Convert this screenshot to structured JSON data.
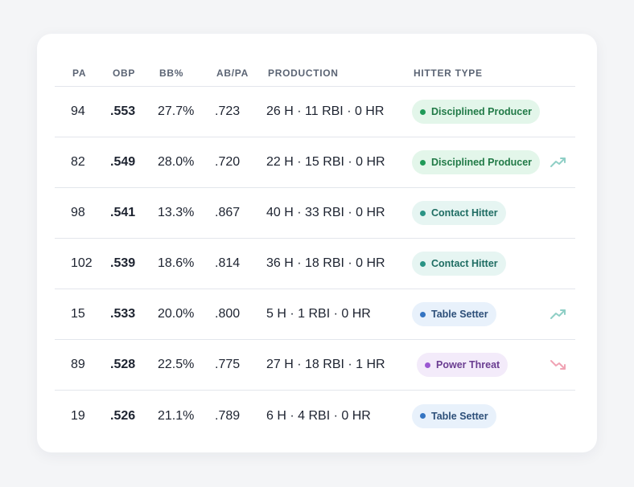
{
  "table": {
    "columns": {
      "pa": "PA",
      "obp": "OBP",
      "bb": "BB%",
      "abpa": "AB/PA",
      "production": "PRODUCTION",
      "hitter_type": "HITTER TYPE"
    },
    "rows": [
      {
        "pa": "94",
        "obp": ".553",
        "bb": "27.7%",
        "abpa": ".723",
        "production": "26 H · 11 RBI · 0 HR",
        "type": "Disciplined Producer",
        "type_color": "green",
        "trend": "none"
      },
      {
        "pa": "82",
        "obp": ".549",
        "bb": "28.0%",
        "abpa": ".720",
        "production": "22 H · 15 RBI · 0 HR",
        "type": "Disciplined Producer",
        "type_color": "green",
        "trend": "up"
      },
      {
        "pa": "98",
        "obp": ".541",
        "bb": "13.3%",
        "abpa": ".867",
        "production": "40 H · 33 RBI · 0 HR",
        "type": "Contact Hitter",
        "type_color": "teal",
        "trend": "none"
      },
      {
        "pa": "102",
        "obp": ".539",
        "bb": "18.6%",
        "abpa": ".814",
        "production": "36 H · 18 RBI · 0 HR",
        "type": "Contact Hitter",
        "type_color": "teal",
        "trend": "none"
      },
      {
        "pa": "15",
        "obp": ".533",
        "bb": "20.0%",
        "abpa": ".800",
        "production": "5 H · 1 RBI · 0 HR",
        "type": "Table Setter",
        "type_color": "blue",
        "trend": "up"
      },
      {
        "pa": "89",
        "obp": ".528",
        "bb": "22.5%",
        "abpa": ".775",
        "production": "27 H · 18 RBI · 1 HR",
        "type": "Power Threat",
        "type_color": "purple",
        "trend": "down"
      },
      {
        "pa": "19",
        "obp": ".526",
        "bb": "21.1%",
        "abpa": ".789",
        "production": "6 H · 4 RBI · 0 HR",
        "type": "Table Setter",
        "type_color": "blue",
        "trend": "none"
      }
    ]
  },
  "colors": {
    "trend_up": "#8fcfc6",
    "trend_down": "#f0a3b4"
  },
  "icons": {
    "trend_up": "trending-up-icon",
    "trend_down": "trending-down-icon"
  }
}
